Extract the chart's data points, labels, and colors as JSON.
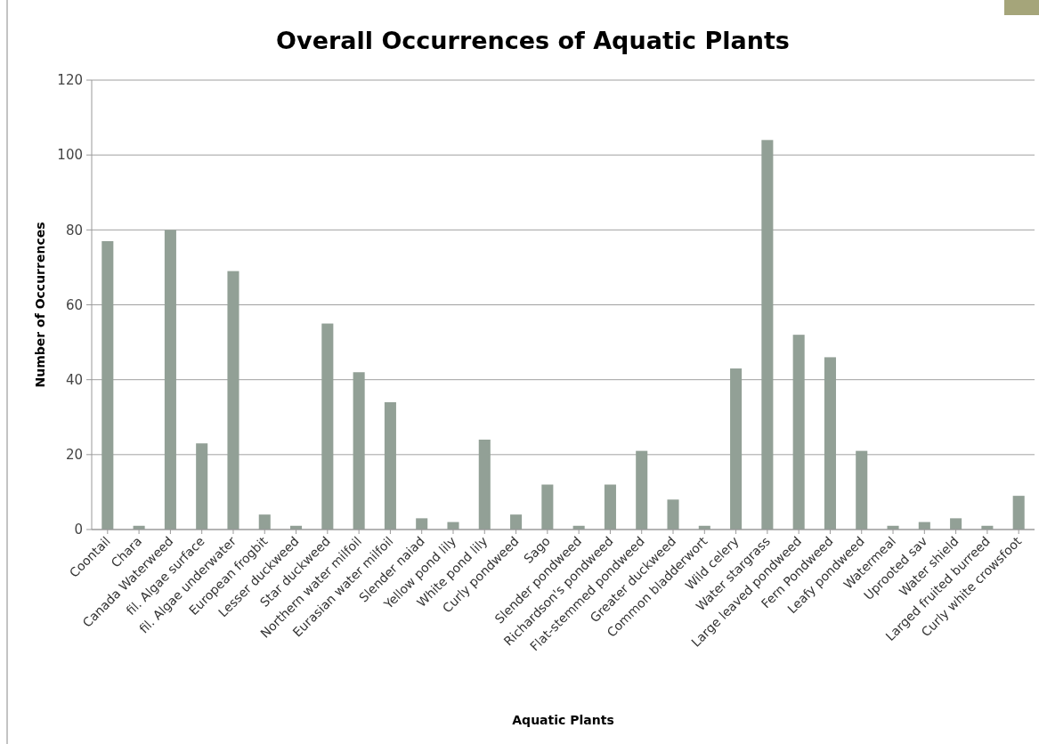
{
  "chart_data": {
    "type": "bar",
    "title": "Overall Occurrences of Aquatic Plants",
    "xlabel": "Aquatic Plants",
    "ylabel": "Number of Occurrences",
    "categories": [
      "Coontail",
      "Chara",
      "Canada Waterweed",
      "fil. Algae surface",
      "fil. Algae underwater",
      "European frogbit",
      "Lesser duckweed",
      "Star duckweed",
      "Northern water milfoil",
      "Eurasian water milfoil",
      "Slender naiad",
      "Yellow pond lily",
      "White pond lily",
      "Curly pondweed",
      "Sago",
      "Slender pondweed",
      "Richardson's pondweed",
      "Flat-stemmed pondweed",
      "Greater duckweed",
      "Common bladderwort",
      "Wild celery",
      "Water stargrass",
      "Large leaved pondweed",
      "Fern Pondweed",
      "Leafy pondweed",
      "Watermeal",
      "Uprooted sav",
      "Water shield",
      "Larged fruited burreed",
      "Curly white crowsfoot"
    ],
    "values": [
      77,
      1,
      80,
      23,
      69,
      4,
      1,
      55,
      42,
      34,
      3,
      2,
      24,
      4,
      12,
      1,
      12,
      21,
      8,
      1,
      43,
      104,
      52,
      46,
      21,
      1,
      2,
      3,
      1,
      9
    ],
    "color": "#92a096",
    "ylim": [
      0,
      120
    ],
    "yticks": [
      0,
      20,
      40,
      60,
      80,
      100,
      120
    ],
    "grid": "y"
  }
}
